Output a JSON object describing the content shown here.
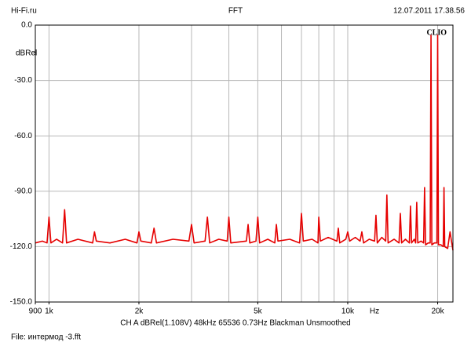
{
  "chart_data": {
    "type": "line",
    "header_left": "Hi-Fi.ru",
    "title": "FFT",
    "timestamp": "12.07.2011 17.38.56",
    "brand": "CLIO",
    "y_label": "dBRel",
    "x_label": "Hz",
    "settings": "CH A   dBRel(1.108V)   48kHz   65536   0.73Hz   Blackman   Unsmoothed",
    "file": "File: интермод -3.fft",
    "xscale": "log",
    "xlim": [
      900,
      22500
    ],
    "ylim": [
      -150,
      0
    ],
    "xticks": [
      900,
      {
        "value": 1000,
        "label": "1k"
      },
      {
        "value": 2000,
        "label": "2k"
      },
      {
        "value": 5000,
        "label": "5k"
      },
      {
        "value": 10000,
        "label": "10k"
      },
      {
        "value": 20000,
        "label": "20k"
      }
    ],
    "xgrid": [
      1000,
      2000,
      3000,
      4000,
      5000,
      6000,
      7000,
      8000,
      9000,
      10000,
      20000
    ],
    "yticks": [
      {
        "value": 0,
        "label": "0.0"
      },
      {
        "value": -30,
        "label": "-30.0"
      },
      {
        "value": -60,
        "label": "-60.0"
      },
      {
        "value": -90,
        "label": "-90.0"
      },
      {
        "value": -120,
        "label": "-120.0"
      },
      {
        "value": -150,
        "label": "-150.0"
      }
    ],
    "grid": true,
    "series": [
      {
        "name": "CH A",
        "color": "#e60000",
        "x": [
          900,
          950,
          985,
          1000,
          1015,
          1060,
          1110,
          1128,
          1145,
          1250,
          1400,
          1420,
          1440,
          1600,
          1800,
          1970,
          2000,
          2030,
          2200,
          2247,
          2290,
          2600,
          2940,
          3000,
          3060,
          3330,
          3390,
          3450,
          3700,
          3950,
          4000,
          4060,
          4580,
          4640,
          4700,
          4930,
          5000,
          5070,
          5400,
          5700,
          5770,
          5840,
          6400,
          6900,
          7000,
          7100,
          7600,
          7950,
          8000,
          8100,
          8600,
          9200,
          9300,
          9400,
          9850,
          10000,
          10150,
          10600,
          11000,
          11150,
          11300,
          11800,
          12300,
          12430,
          12560,
          13000,
          13400,
          13520,
          13650,
          14300,
          14850,
          15000,
          15150,
          15600,
          16080,
          16220,
          16360,
          16700,
          16880,
          17020,
          17160,
          17600,
          17950,
          18080,
          18220,
          18600,
          18880,
          19000,
          19120,
          19500,
          19880,
          20000,
          20120,
          20500,
          20880,
          21000,
          21120,
          21600,
          22000,
          22500
        ],
        "values": [
          -118,
          -117,
          -118,
          -104,
          -118,
          -116,
          -118,
          -100,
          -118,
          -116,
          -118,
          -112,
          -117,
          -118,
          -116,
          -118,
          -112,
          -117,
          -118,
          -110,
          -118,
          -116,
          -117,
          -108,
          -118,
          -117,
          -104,
          -118,
          -116,
          -117,
          -104,
          -118,
          -117,
          -108,
          -118,
          -117,
          -104,
          -118,
          -116,
          -118,
          -108,
          -117,
          -116,
          -118,
          -102,
          -117,
          -116,
          -118,
          -104,
          -117,
          -115,
          -117,
          -110,
          -118,
          -116,
          -112,
          -117,
          -115,
          -117,
          -112,
          -118,
          -116,
          -117,
          -103,
          -118,
          -115,
          -117,
          -92,
          -118,
          -116,
          -118,
          -102,
          -118,
          -116,
          -118,
          -98,
          -118,
          -116,
          -118,
          -96,
          -118,
          -117,
          -118,
          -88,
          -119,
          -118,
          -118,
          -5.5,
          -119,
          -118,
          -118,
          -5.5,
          -119,
          -119,
          -120,
          -88,
          -120,
          -121,
          -112,
          -122
        ]
      }
    ]
  }
}
